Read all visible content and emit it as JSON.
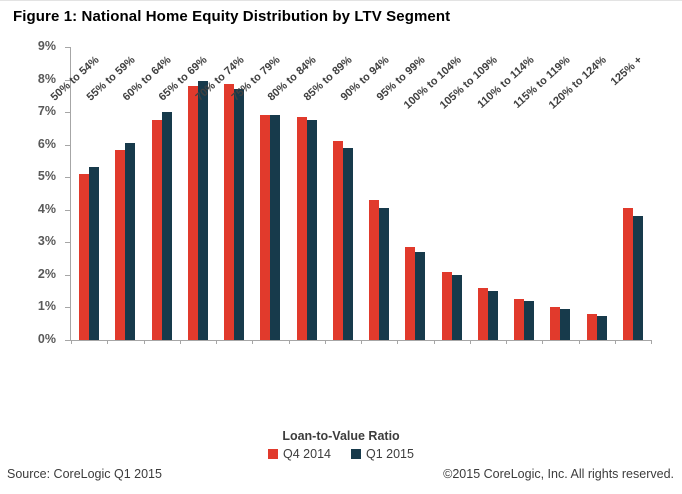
{
  "title": "Figure 1: National Home Equity Distribution by LTV Segment",
  "footer": {
    "source": "Source: CoreLogic Q1 2015",
    "copyright": "©2015 CoreLogic, Inc. All rights reserved."
  },
  "colors": {
    "series_q4_2014": "#e13a2c",
    "series_q1_2015": "#173a4b",
    "axis_line": "#a6a6a6",
    "y_tick_label": "#595959",
    "x_tick_label": "#404040"
  },
  "chart_data": {
    "type": "bar",
    "title": "Figure 1: National Home Equity Distribution by LTV Segment",
    "categories": [
      "50% to 54%",
      "55% to 59%",
      "60% to 64%",
      "65% to 69%",
      "70% to 74%",
      "75% to 79%",
      "80% to 84%",
      "85% to 89%",
      "90% to 94%",
      "95% to 99%",
      "100% to 104%",
      "105% to 109%",
      "110% to 114%",
      "115% to 119%",
      "120% to 124%",
      "125% +"
    ],
    "series": [
      {
        "name": "Q4 2014",
        "color": "#e13a2c",
        "values": [
          5.1,
          5.85,
          6.75,
          7.8,
          7.85,
          6.9,
          6.85,
          6.1,
          4.3,
          2.85,
          2.1,
          1.6,
          1.25,
          1.0,
          0.8,
          4.05
        ]
      },
      {
        "name": "Q1 2015",
        "color": "#173a4b",
        "values": [
          5.3,
          6.05,
          7.0,
          7.95,
          7.7,
          6.9,
          6.75,
          5.9,
          4.05,
          2.7,
          2.0,
          1.5,
          1.2,
          0.95,
          0.75,
          3.8
        ]
      }
    ],
    "xlabel": "Loan-to-Value Ratio",
    "ylabel": "",
    "ylim": [
      0,
      9
    ],
    "yticks": [
      "0%",
      "1%",
      "2%",
      "3%",
      "4%",
      "5%",
      "6%",
      "7%",
      "8%",
      "9%"
    ],
    "grid": false,
    "legend_position": "bottom"
  }
}
